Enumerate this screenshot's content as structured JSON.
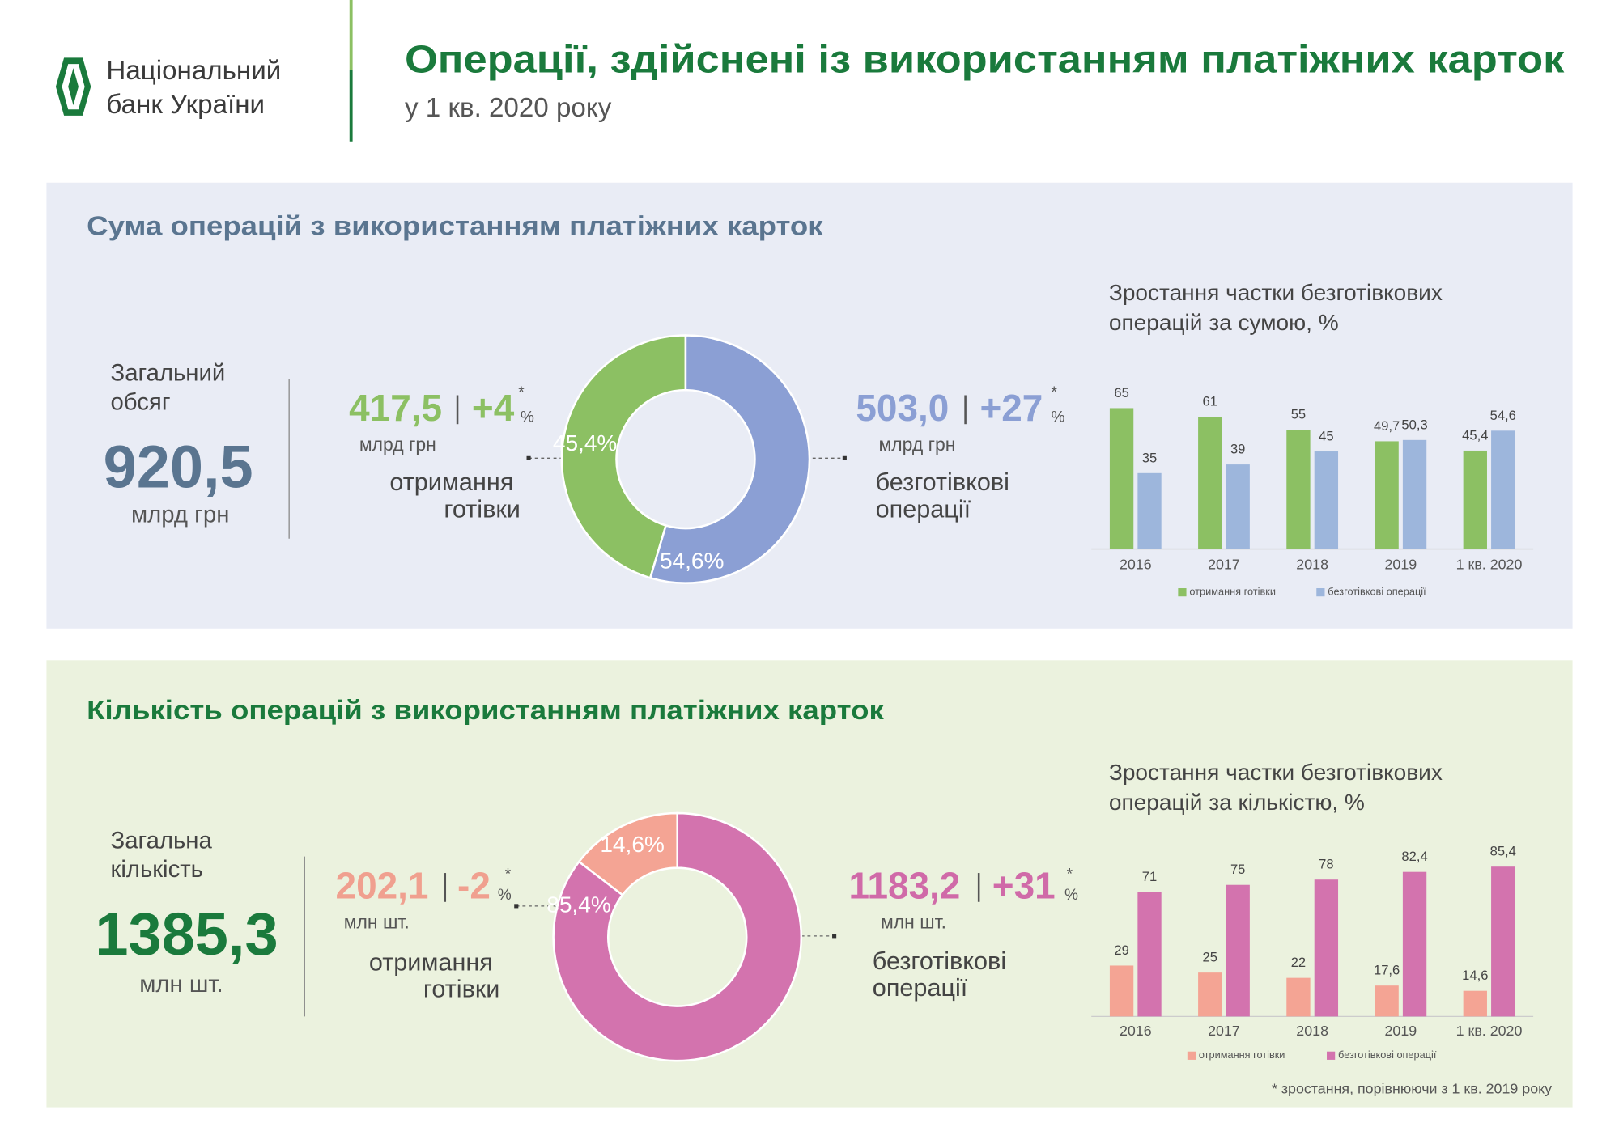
{
  "header": {
    "logo_lines": [
      "Національний",
      "банк України"
    ],
    "title": "Операції, здійснені із використанням платіжних карток",
    "subtitle": "у 1 кв. 2020 року"
  },
  "sections": [
    {
      "title": "Сума операцій з використанням платіжних карток",
      "total_label": [
        "Загальний",
        "обсяг"
      ],
      "total_value": "920,5",
      "total_unit": "млрд грн",
      "cash": {
        "value": "417,5",
        "change": "+4",
        "unit": "млрд грн"
      },
      "noncash": {
        "value": "503,0",
        "change": "+27",
        "unit": "млрд грн"
      }
    },
    {
      "title": "Кількість операцій з використанням платіжних карток",
      "total_label": [
        "Загальна",
        "кількість"
      ],
      "total_value": "1385,3",
      "total_unit": "млн шт.",
      "cash": {
        "value": "202,1",
        "change": "-2",
        "unit": "млн шт."
      },
      "noncash": {
        "value": "1183,2",
        "change": "+31",
        "unit": "млн шт."
      }
    }
  ],
  "asterisk": "*",
  "percent_sign": "%",
  "footnote": "* зростання, порівнюючи з 1 кв. 2019 року",
  "chart_data": [
    {
      "type": "donut",
      "categories": [
        "отримання готівки",
        "безготівкові операції"
      ],
      "values": [
        45.4,
        54.6
      ],
      "value_labels": [
        "45,4%",
        "54,6%"
      ],
      "colors": [
        "#8cc063",
        "#8b9fd4"
      ]
    },
    {
      "type": "bar",
      "title": [
        "Зростання частки безготівкових",
        "операцій за сумою, %"
      ],
      "categories": [
        "2016",
        "2017",
        "2018",
        "2019",
        "1 кв. 2020"
      ],
      "series": [
        {
          "name": "отримання готівки",
          "color": "#8cc063",
          "values": [
            65,
            61,
            55,
            49.7,
            45.4
          ],
          "value_labels": [
            "65",
            "61",
            "55",
            "49,7",
            "45,4"
          ]
        },
        {
          "name": "безготівкові операції",
          "color": "#9db6dc",
          "values": [
            35,
            39,
            45,
            50.3,
            54.6
          ],
          "value_labels": [
            "35",
            "39",
            "45",
            "50,3",
            "54,6"
          ]
        }
      ],
      "ylim": [
        0,
        100
      ],
      "legend": "bottom"
    },
    {
      "type": "donut",
      "categories": [
        "отримання готівки",
        "безготівкові операції"
      ],
      "values": [
        14.6,
        85.4
      ],
      "value_labels": [
        "14,6%",
        "85,4%"
      ],
      "colors": [
        "#f4a494",
        "#d373ae"
      ]
    },
    {
      "type": "bar",
      "title": [
        "Зростання частки безготівкових",
        "операцій за кількістю, %"
      ],
      "categories": [
        "2016",
        "2017",
        "2018",
        "2019",
        "1 кв. 2020"
      ],
      "series": [
        {
          "name": "отримання готівки",
          "color": "#f4a494",
          "values": [
            29,
            25,
            22,
            17.6,
            14.6
          ],
          "value_labels": [
            "29",
            "25",
            "22",
            "17,6",
            "14,6"
          ]
        },
        {
          "name": "безготівкові операції",
          "color": "#d373ae",
          "values": [
            71,
            75,
            78,
            82.4,
            85.4
          ],
          "value_labels": [
            "71",
            "75",
            "78",
            "82,4",
            "85,4"
          ]
        }
      ],
      "ylim": [
        0,
        100
      ],
      "legend": "bottom"
    }
  ]
}
